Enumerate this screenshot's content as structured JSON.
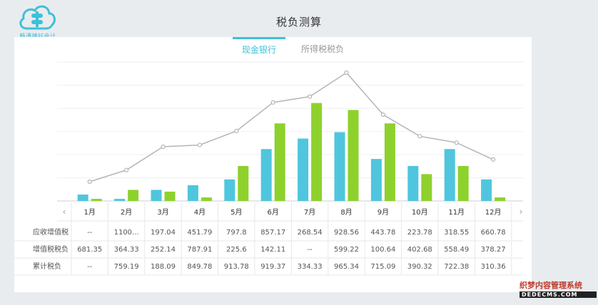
{
  "logo": {
    "text": "畅通捷好会计"
  },
  "page_title": "税负测算",
  "tabs": [
    {
      "label": "现金银行",
      "active": true
    },
    {
      "label": "所得税税负",
      "active": false
    }
  ],
  "colors": {
    "accent": "#3ec0d8",
    "bar_series_1": "#4fc6dd",
    "bar_series_2": "#8ed12c",
    "line": "#b5b5b5"
  },
  "icons": {
    "prev": "chevron-left-icon",
    "next": "chevron-right-icon"
  },
  "chart_data": {
    "type": "bar",
    "categories": [
      "1月",
      "2月",
      "3月",
      "4月",
      "5月",
      "6月",
      "7月",
      "8月",
      "9月",
      "10月",
      "11月",
      "12月"
    ],
    "ylim": [
      0,
      1100
    ],
    "grid": true,
    "series": [
      {
        "type": "bar",
        "values": [
          55,
          18,
          95,
          135,
          185,
          445,
          535,
          590,
          360,
          300,
          445,
          185
        ]
      },
      {
        "type": "bar",
        "values": [
          18,
          95,
          80,
          30,
          300,
          665,
          840,
          780,
          665,
          230,
          300,
          30
        ]
      },
      {
        "type": "line",
        "values": [
          165,
          265,
          465,
          480,
          600,
          845,
          895,
          1100,
          740,
          555,
          500,
          355
        ]
      }
    ]
  },
  "table": {
    "rows": [
      {
        "label": "应收增值税",
        "values": [
          "--",
          "1100...",
          "197.04",
          "451.79",
          "797.8",
          "857.17",
          "268.54",
          "928.56",
          "443.78",
          "223.78",
          "318.55",
          "660.78"
        ]
      },
      {
        "label": "增值税税负",
        "values": [
          "681.35",
          "364.33",
          "252.14",
          "787.91",
          "225.6",
          "142.11",
          "--",
          "599.22",
          "100.64",
          "402.68",
          "558.49",
          "378.27"
        ]
      },
      {
        "label": "累计税负",
        "values": [
          "--",
          "759.19",
          "188.09",
          "849.78",
          "913.78",
          "919.37",
          "334.33",
          "965.34",
          "715.09",
          "390.32",
          "722.38",
          "310.36"
        ]
      }
    ]
  },
  "watermark": {
    "line1": "织梦内容管理系统",
    "line2": "DEDECMS.COM"
  }
}
